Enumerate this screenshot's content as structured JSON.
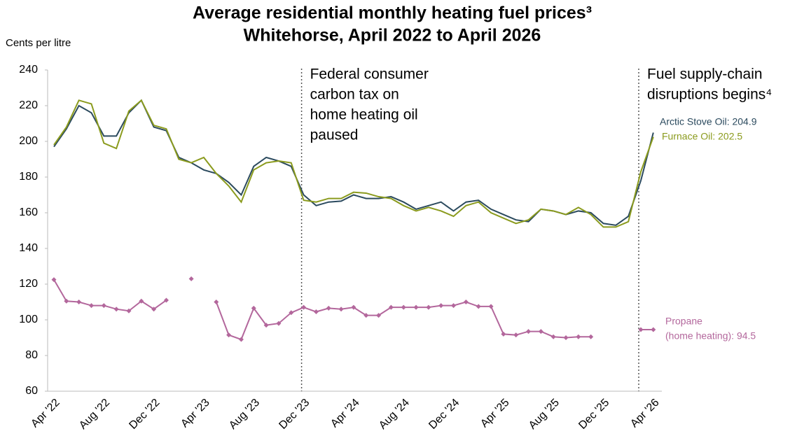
{
  "chart_data": {
    "type": "line",
    "title": [
      "Average residential monthly heating fuel prices³",
      "Whitehorse, April 2022 to April 2026"
    ],
    "y_label": "Cents per litre",
    "categories": [
      "Apr '22",
      null,
      null,
      null,
      "Aug '22",
      null,
      null,
      null,
      "Dec '22",
      null,
      null,
      null,
      "Apr '23",
      null,
      null,
      null,
      "Aug '23",
      null,
      null,
      null,
      "Dec '23",
      null,
      null,
      null,
      "Apr '24",
      null,
      null,
      null,
      "Aug '24",
      null,
      null,
      null,
      "Dec '24",
      null,
      null,
      null,
      "Apr '25",
      null,
      null,
      null,
      "Aug '25",
      null,
      null,
      null,
      "Dec '25",
      null,
      null,
      null,
      "Apr '26"
    ],
    "ylim": [
      60,
      240
    ],
    "yticks": [
      60,
      80,
      100,
      120,
      140,
      160,
      180,
      200,
      220,
      240
    ],
    "series": [
      {
        "name": "Arctic Stove Oil",
        "color": "#2b4a5e",
        "markers": false,
        "end_label": [
          "Arctic Stove Oil: 204.9"
        ],
        "values": [
          197,
          207,
          220,
          216,
          203,
          203,
          216,
          223,
          208,
          206,
          191,
          188,
          184,
          182,
          177,
          170,
          186,
          191,
          189,
          186,
          170,
          164,
          166,
          166.5,
          170,
          168,
          168,
          169,
          166,
          162,
          164,
          166,
          161,
          166,
          167,
          162,
          159,
          156,
          155,
          162,
          161,
          159,
          161,
          160,
          154,
          153,
          158,
          178,
          204.9
        ]
      },
      {
        "name": "Furnace Oil",
        "color": "#8b9b1e",
        "markers": false,
        "end_label": [
          "Furnace Oil: 202.5"
        ],
        "values": [
          198,
          208,
          223,
          221,
          199,
          196,
          217,
          223,
          209,
          207,
          190,
          188,
          191,
          182,
          175,
          166,
          184,
          188,
          189,
          188,
          167,
          166,
          168,
          168,
          171.5,
          171,
          169,
          168,
          164,
          161,
          163,
          161,
          158,
          164,
          166,
          160,
          157,
          154,
          156,
          162,
          161,
          159,
          163,
          159,
          152,
          152,
          155,
          183,
          202.5
        ]
      },
      {
        "name": "Propane",
        "color": "#b3679c",
        "markers": true,
        "end_label": [
          "Propane",
          "(home heating): 94.5"
        ],
        "values": [
          122.5,
          110.5,
          110,
          108,
          108,
          106,
          105,
          110.5,
          106,
          111,
          null,
          123,
          null,
          110,
          91.5,
          89,
          106.5,
          97,
          98,
          104,
          107,
          104.5,
          106.5,
          106,
          107,
          102.5,
          102.5,
          107,
          107,
          107,
          107,
          108,
          108,
          110,
          107.5,
          107.5,
          92,
          91.5,
          93.5,
          93.5,
          90.5,
          90,
          90.5,
          90.5,
          null,
          null,
          null,
          94.5,
          94.5
        ]
      }
    ],
    "annotations": [
      {
        "x": 20,
        "text": [
          "Federal consumer",
          "carbon tax on",
          "home heating oil",
          "paused"
        ]
      },
      {
        "x": 47,
        "text": [
          "Fuel supply-chain",
          "disruptions begins⁴"
        ]
      }
    ]
  }
}
